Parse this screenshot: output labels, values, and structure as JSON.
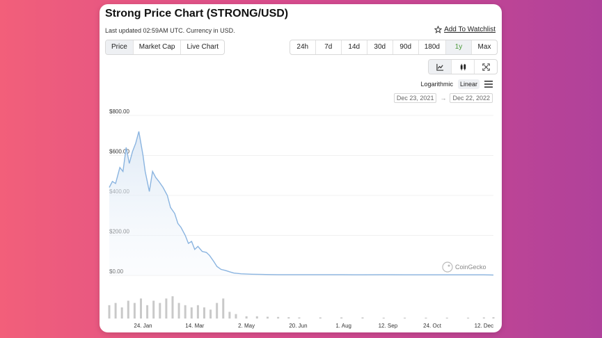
{
  "header": {
    "title": "Strong Price Chart (STRONG/USD)",
    "subtitle": "Last updated 02:59AM UTC. Currency in USD.",
    "watchlist_label": "Add To Watchlist"
  },
  "tabs": [
    {
      "label": "Price",
      "active": true
    },
    {
      "label": "Market Cap",
      "active": false
    },
    {
      "label": "Live Chart",
      "active": false
    }
  ],
  "ranges": [
    {
      "label": "24h",
      "active": false
    },
    {
      "label": "7d",
      "active": false
    },
    {
      "label": "14d",
      "active": false
    },
    {
      "label": "30d",
      "active": false
    },
    {
      "label": "90d",
      "active": false
    },
    {
      "label": "180d",
      "active": false
    },
    {
      "label": "1y",
      "active": true
    },
    {
      "label": "Max",
      "active": false
    }
  ],
  "chart_types": [
    {
      "icon": "line-chart-icon",
      "active": true
    },
    {
      "icon": "candlestick-icon",
      "active": false
    },
    {
      "icon": "fullscreen-icon",
      "active": false
    }
  ],
  "scale": {
    "logarithmic": "Logarithmic",
    "linear": "Linear",
    "selected": "Linear"
  },
  "date_range": {
    "from": "Dec 23, 2021",
    "to": "Dec 22, 2022"
  },
  "watermark": "CoinGecko",
  "colors": {
    "line": "#8ab4e0",
    "volume": "#c9c9c9",
    "accent_green": "#4a9a3a"
  },
  "chart_data": {
    "type": "line",
    "ylabel": "",
    "xlabel": "",
    "ylim": [
      0,
      800
    ],
    "yticks": [
      {
        "value": 0,
        "label": "$0.00"
      },
      {
        "value": 200,
        "label": "$200.00"
      },
      {
        "value": 400,
        "label": "$400.00"
      },
      {
        "value": 600,
        "label": "$600.00"
      },
      {
        "value": 800,
        "label": "$800.00"
      }
    ],
    "xticks": [
      {
        "day": 32,
        "label": "24. Jan"
      },
      {
        "day": 81,
        "label": "14. Mar"
      },
      {
        "day": 130,
        "label": "2. May"
      },
      {
        "day": 179,
        "label": "20. Jun"
      },
      {
        "day": 222,
        "label": "1. Aug"
      },
      {
        "day": 264,
        "label": "12. Sep"
      },
      {
        "day": 306,
        "label": "24. Oct"
      },
      {
        "day": 355,
        "label": "12. Dec"
      }
    ],
    "xlim": [
      0,
      364
    ],
    "series": [
      {
        "x": [
          0,
          3,
          6,
          10,
          13,
          16,
          19,
          22,
          25,
          28,
          32,
          34,
          38,
          41,
          44,
          47,
          51,
          55,
          58,
          62,
          65,
          68,
          72,
          75,
          78,
          81,
          84,
          88,
          92,
          95,
          99,
          102,
          106,
          110,
          114,
          118,
          125,
          135,
          145,
          160,
          180,
          200,
          220,
          240,
          260,
          280,
          300,
          320,
          340,
          355,
          364
        ],
        "values": [
          440,
          470,
          460,
          540,
          520,
          640,
          560,
          620,
          660,
          720,
          600,
          520,
          420,
          520,
          490,
          470,
          440,
          400,
          340,
          310,
          260,
          240,
          200,
          160,
          170,
          130,
          145,
          120,
          115,
          100,
          70,
          45,
          30,
          25,
          18,
          12,
          8,
          6,
          5,
          4,
          4,
          4,
          4,
          3,
          4,
          3,
          3,
          3,
          3,
          3,
          2
        ]
      }
    ],
    "volume": {
      "x": [
        0,
        6,
        12,
        18,
        24,
        30,
        36,
        42,
        48,
        54,
        60,
        66,
        72,
        78,
        84,
        90,
        96,
        102,
        108,
        114,
        120,
        130,
        140,
        150,
        160,
        170,
        180,
        200,
        220,
        240,
        260,
        280,
        300,
        320,
        340,
        355,
        364
      ],
      "values": [
        0.6,
        0.7,
        0.5,
        0.8,
        0.7,
        0.9,
        0.6,
        0.8,
        0.7,
        0.9,
        1.0,
        0.7,
        0.6,
        0.5,
        0.6,
        0.5,
        0.4,
        0.7,
        0.9,
        0.3,
        0.2,
        0.1,
        0.1,
        0.08,
        0.07,
        0.06,
        0.05,
        0.05,
        0.05,
        0.05,
        0.04,
        0.04,
        0.04,
        0.04,
        0.04,
        0.05,
        0.06
      ]
    }
  }
}
